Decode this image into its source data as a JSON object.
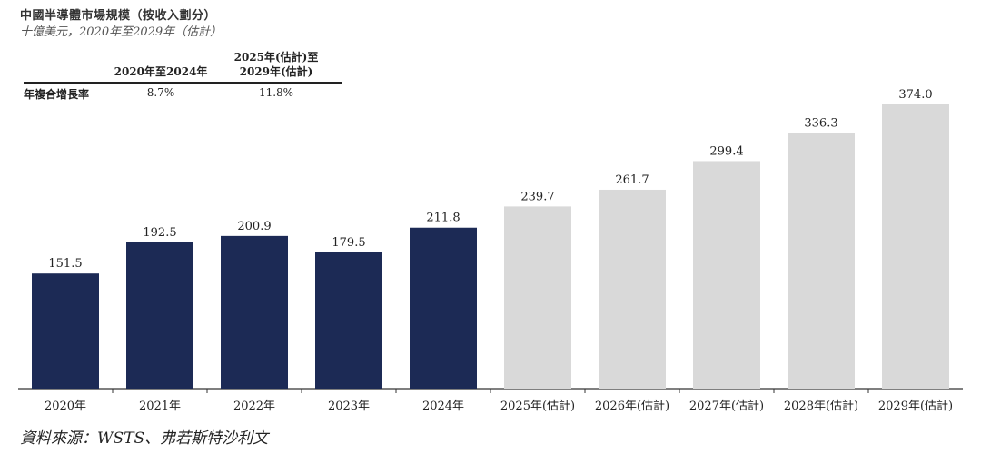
{
  "header": {
    "title": "中國半導體市場規模（按收入劃分）",
    "subtitle": "十億美元，2020年至2029年（估計）"
  },
  "cagr": {
    "row_label": "年複合增長率",
    "col1_header": "2020年至2024年",
    "col2_header_line1": "2025年(估計)至",
    "col2_header_line2": "2029年(估計)",
    "col1_value": "8.7%",
    "col2_value": "11.8%"
  },
  "chart_data": {
    "type": "bar",
    "title": "中國半導體市場規模（按收入劃分）",
    "subtitle": "十億美元，2020年至2029年（估計）",
    "categories": [
      "2020年",
      "2021年",
      "2022年",
      "2023年",
      "2024年",
      "2025年(估計)",
      "2026年(估計)",
      "2027年(估計)",
      "2028年(估計)",
      "2029年(估計)"
    ],
    "values": [
      151.5,
      192.5,
      200.9,
      179.5,
      211.8,
      239.7,
      261.7,
      299.4,
      336.3,
      374.0
    ],
    "value_labels": [
      "151.5",
      "192.5",
      "200.9",
      "179.5",
      "211.8",
      "239.7",
      "261.7",
      "299.4",
      "336.3",
      "374.0"
    ],
    "ylim": [
      0,
      374.0
    ],
    "grid": false,
    "colors": {
      "historical": "#1c2a55",
      "forecast": "#d9d9d9",
      "axis": "#333333",
      "label": "#222222"
    },
    "forecast_start_index": 5
  },
  "footer": {
    "source": "資料來源：WSTS、弗若斯特沙利文"
  }
}
